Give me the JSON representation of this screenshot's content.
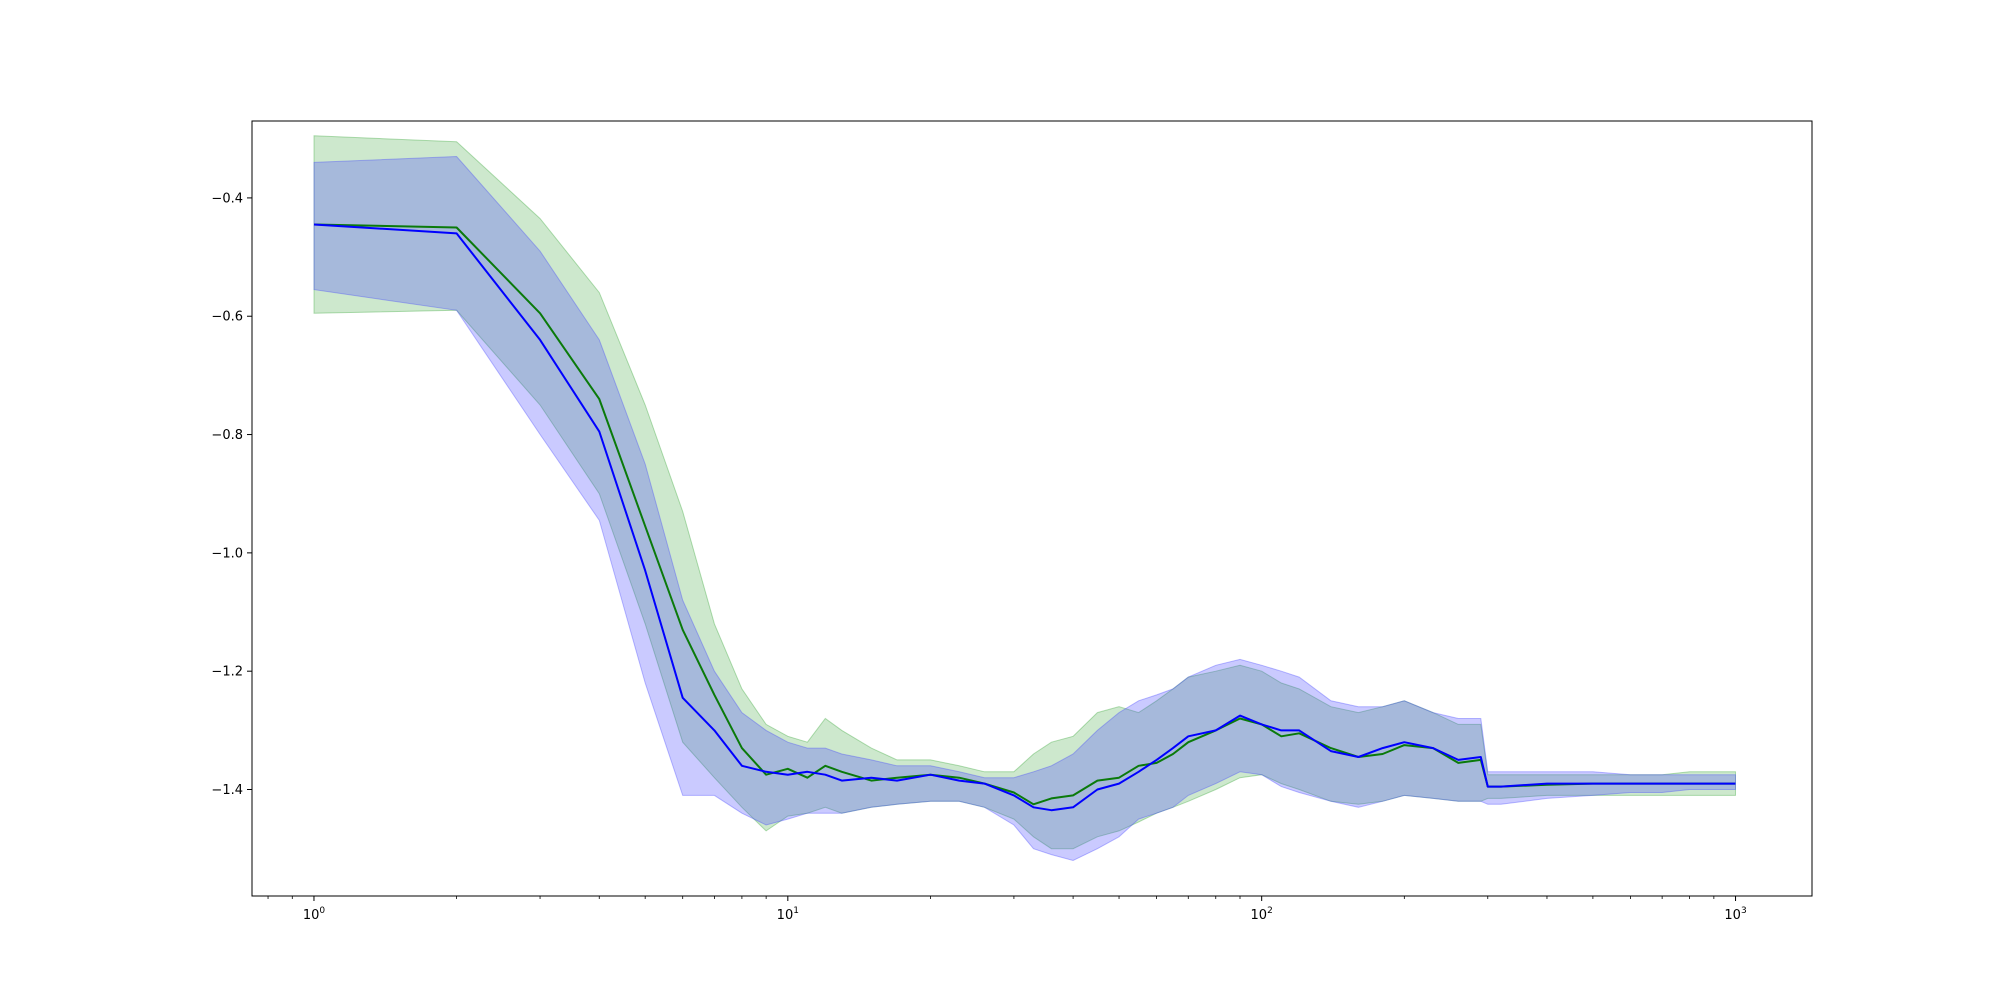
{
  "chart_data": {
    "type": "line",
    "title": "",
    "xlabel": "",
    "ylabel": "",
    "xscale": "log",
    "xlim": [
      0.74,
      1450
    ],
    "ylim": [
      -1.58,
      -0.27
    ],
    "grid": false,
    "legend": "none",
    "yticks": [
      {
        "value": -0.4,
        "label": "−0.4"
      },
      {
        "value": -0.6,
        "label": "−0.6"
      },
      {
        "value": -0.8,
        "label": "−0.8"
      },
      {
        "value": -1.0,
        "label": "−1.0"
      },
      {
        "value": -1.2,
        "label": "−1.2"
      },
      {
        "value": -1.4,
        "label": "−1.4"
      }
    ],
    "xticks": [
      {
        "value": 1,
        "base": "10",
        "exp": "0"
      },
      {
        "value": 10,
        "base": "10",
        "exp": "1"
      },
      {
        "value": 100,
        "base": "10",
        "exp": "2"
      },
      {
        "value": 1000,
        "base": "10",
        "exp": "3"
      }
    ],
    "series": [
      {
        "color": "#0a7a0a",
        "band_color": "#2ca02c",
        "x": [
          1,
          2,
          3,
          4,
          5,
          6,
          7,
          8,
          9,
          10,
          11,
          12,
          13,
          15,
          17,
          20,
          23,
          26,
          30,
          33,
          36,
          40,
          45,
          50,
          55,
          60,
          65,
          70,
          80,
          90,
          100,
          110,
          120,
          140,
          160,
          180,
          200,
          230,
          260,
          290,
          300,
          320,
          400,
          500,
          600,
          700,
          800,
          900,
          1000
        ],
        "y": [
          -0.445,
          -0.45,
          -0.595,
          -0.74,
          -0.955,
          -1.13,
          -1.24,
          -1.33,
          -1.375,
          -1.365,
          -1.38,
          -1.36,
          -1.37,
          -1.385,
          -1.38,
          -1.375,
          -1.38,
          -1.39,
          -1.405,
          -1.425,
          -1.415,
          -1.41,
          -1.385,
          -1.38,
          -1.36,
          -1.355,
          -1.34,
          -1.32,
          -1.3,
          -1.28,
          -1.29,
          -1.31,
          -1.305,
          -1.33,
          -1.345,
          -1.34,
          -1.325,
          -1.33,
          -1.355,
          -1.35,
          -1.395,
          -1.395,
          -1.392,
          -1.39,
          -1.39,
          -1.39,
          -1.39,
          -1.39,
          -1.39
        ],
        "lower": [
          -0.595,
          -0.59,
          -0.75,
          -0.9,
          -1.12,
          -1.32,
          -1.38,
          -1.43,
          -1.47,
          -1.445,
          -1.44,
          -1.43,
          -1.44,
          -1.43,
          -1.425,
          -1.42,
          -1.42,
          -1.43,
          -1.45,
          -1.48,
          -1.5,
          -1.5,
          -1.48,
          -1.47,
          -1.455,
          -1.44,
          -1.43,
          -1.42,
          -1.4,
          -1.38,
          -1.375,
          -1.39,
          -1.4,
          -1.42,
          -1.425,
          -1.42,
          -1.41,
          -1.415,
          -1.42,
          -1.42,
          -1.415,
          -1.415,
          -1.41,
          -1.41,
          -1.41,
          -1.41,
          -1.41,
          -1.41,
          -1.41
        ],
        "upper": [
          -0.295,
          -0.305,
          -0.435,
          -0.56,
          -0.75,
          -0.93,
          -1.12,
          -1.23,
          -1.29,
          -1.31,
          -1.32,
          -1.28,
          -1.3,
          -1.33,
          -1.35,
          -1.35,
          -1.36,
          -1.37,
          -1.37,
          -1.34,
          -1.32,
          -1.31,
          -1.27,
          -1.26,
          -1.27,
          -1.25,
          -1.23,
          -1.21,
          -1.2,
          -1.19,
          -1.2,
          -1.22,
          -1.23,
          -1.26,
          -1.27,
          -1.26,
          -1.25,
          -1.27,
          -1.29,
          -1.29,
          -1.375,
          -1.375,
          -1.375,
          -1.375,
          -1.375,
          -1.375,
          -1.37,
          -1.37,
          -1.37
        ]
      },
      {
        "color": "#0000ff",
        "band_color": "#4040ff",
        "x": [
          1,
          2,
          3,
          4,
          5,
          6,
          7,
          8,
          9,
          10,
          11,
          12,
          13,
          15,
          17,
          20,
          23,
          26,
          30,
          33,
          36,
          40,
          45,
          50,
          55,
          60,
          65,
          70,
          80,
          90,
          100,
          110,
          120,
          140,
          160,
          180,
          200,
          230,
          260,
          290,
          300,
          320,
          400,
          500,
          600,
          700,
          800,
          900,
          1000
        ],
        "y": [
          -0.445,
          -0.46,
          -0.64,
          -0.795,
          -1.03,
          -1.245,
          -1.3,
          -1.36,
          -1.37,
          -1.375,
          -1.37,
          -1.375,
          -1.385,
          -1.38,
          -1.385,
          -1.375,
          -1.385,
          -1.39,
          -1.41,
          -1.43,
          -1.435,
          -1.43,
          -1.4,
          -1.39,
          -1.37,
          -1.35,
          -1.33,
          -1.31,
          -1.3,
          -1.275,
          -1.29,
          -1.3,
          -1.3,
          -1.335,
          -1.345,
          -1.33,
          -1.32,
          -1.33,
          -1.35,
          -1.345,
          -1.395,
          -1.395,
          -1.39,
          -1.39,
          -1.39,
          -1.39,
          -1.39,
          -1.39,
          -1.39
        ],
        "lower": [
          -0.555,
          -0.59,
          -0.8,
          -0.945,
          -1.22,
          -1.41,
          -1.41,
          -1.44,
          -1.46,
          -1.45,
          -1.44,
          -1.44,
          -1.44,
          -1.43,
          -1.425,
          -1.42,
          -1.42,
          -1.43,
          -1.46,
          -1.5,
          -1.51,
          -1.52,
          -1.5,
          -1.48,
          -1.45,
          -1.44,
          -1.43,
          -1.41,
          -1.39,
          -1.37,
          -1.375,
          -1.395,
          -1.405,
          -1.42,
          -1.43,
          -1.42,
          -1.41,
          -1.415,
          -1.42,
          -1.42,
          -1.425,
          -1.425,
          -1.415,
          -1.41,
          -1.405,
          -1.405,
          -1.4,
          -1.4,
          -1.4
        ],
        "upper": [
          -0.34,
          -0.33,
          -0.49,
          -0.64,
          -0.85,
          -1.08,
          -1.2,
          -1.27,
          -1.3,
          -1.32,
          -1.33,
          -1.33,
          -1.34,
          -1.35,
          -1.36,
          -1.36,
          -1.37,
          -1.38,
          -1.38,
          -1.37,
          -1.36,
          -1.34,
          -1.3,
          -1.27,
          -1.25,
          -1.24,
          -1.23,
          -1.21,
          -1.19,
          -1.18,
          -1.19,
          -1.2,
          -1.21,
          -1.25,
          -1.26,
          -1.26,
          -1.25,
          -1.27,
          -1.28,
          -1.28,
          -1.37,
          -1.37,
          -1.37,
          -1.37,
          -1.375,
          -1.375,
          -1.375,
          -1.375,
          -1.375
        ]
      }
    ]
  }
}
